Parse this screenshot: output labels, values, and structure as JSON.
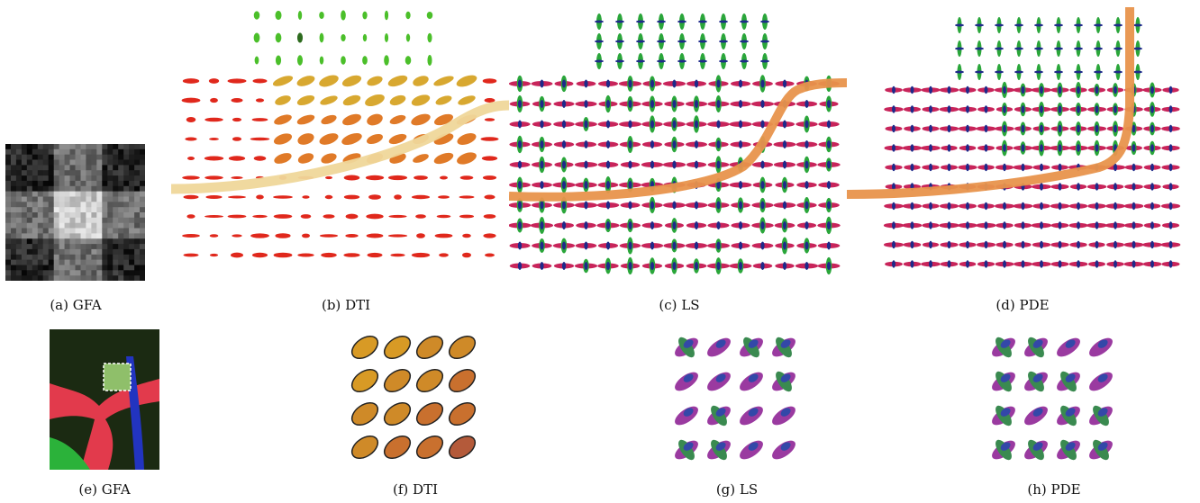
{
  "figure": {
    "panels": [
      {
        "id": "a",
        "label": "(a)",
        "name": "GFA",
        "kind": "gfa-map"
      },
      {
        "id": "b",
        "label": "(b)",
        "name": "DTI",
        "kind": "ellipsoid-field"
      },
      {
        "id": "c",
        "label": "(c)",
        "name": "LS",
        "kind": "odf-field"
      },
      {
        "id": "d",
        "label": "(d)",
        "name": "PDE",
        "kind": "odf-field"
      },
      {
        "id": "e",
        "label": "(e)",
        "name": "GFA",
        "kind": "color-fa-map"
      },
      {
        "id": "f",
        "label": "(f)",
        "name": "DTI",
        "kind": "ellipsoid-grid"
      },
      {
        "id": "g",
        "label": "(g)",
        "name": "LS",
        "kind": "odf-grid"
      },
      {
        "id": "h",
        "label": "(h)",
        "name": "PDE",
        "kind": "odf-grid"
      }
    ],
    "colors": {
      "tensor_red": "#e0281c",
      "tensor_orange": "#e07a28",
      "tensor_green": "#4bbf2a",
      "fiber_dti": "#efd79a",
      "fiber_odf": "#e8934c",
      "odf_magenta": "#c8245a",
      "odf_green": "#2aa63a",
      "odf_blue": "#1e2a8a"
    }
  }
}
